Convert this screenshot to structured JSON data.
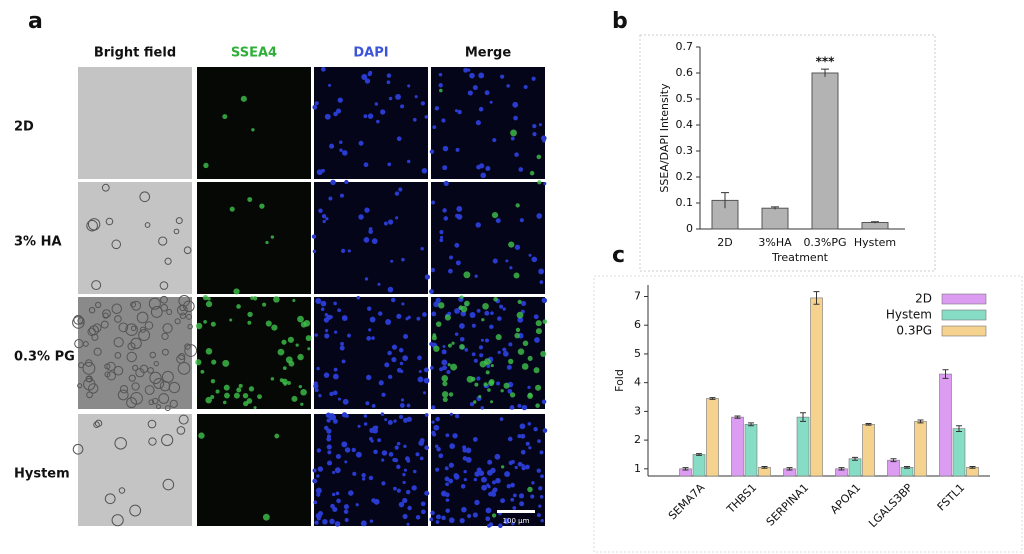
{
  "panel_labels": [
    "a",
    "b",
    "c"
  ],
  "panel_a": {
    "columns": [
      "Bright field",
      "SSEA4",
      "DAPI",
      "Merge"
    ],
    "rows": [
      "2D",
      "3% HA",
      "0.3% PG",
      "Hystem"
    ],
    "scale_bar": "100 μm"
  },
  "chart_data": [
    {
      "type": "bar",
      "categories": [
        "2D",
        "3%HA",
        "0.3%PG",
        "Hystem"
      ],
      "values": [
        0.11,
        0.08,
        0.6,
        0.025
      ],
      "errors": [
        0.03,
        0.005,
        0.015,
        0.003
      ],
      "color": "#b3b3b3",
      "ylim": [
        0,
        0.7
      ],
      "yticks": [
        0,
        0.1,
        0.2,
        0.3,
        0.4,
        0.5,
        0.6,
        0.7
      ],
      "ylabel": "SSEA/DAPI Intensity",
      "xlabel": "Treatment",
      "annotations": [
        {
          "text": "***",
          "category": 2
        }
      ]
    },
    {
      "type": "grouped-bar",
      "categories": [
        "SEMA7A",
        "THBS1",
        "SERPINA1",
        "APOA1",
        "LGALS3BP",
        "FSTL1"
      ],
      "series": [
        {
          "name": "2D",
          "color": "#dc9cf2",
          "values": [
            1.0,
            2.8,
            1.0,
            1.0,
            1.3,
            4.3
          ],
          "errors": [
            0.04,
            0.04,
            0.04,
            0.04,
            0.05,
            0.15
          ]
        },
        {
          "name": "Hystem",
          "color": "#86dcc4",
          "values": [
            1.5,
            2.55,
            2.8,
            1.35,
            1.05,
            2.4
          ],
          "errors": [
            0.03,
            0.05,
            0.15,
            0.05,
            0.03,
            0.1
          ]
        },
        {
          "name": "0.3PG",
          "color": "#f5d28e",
          "values": [
            3.45,
            1.05,
            6.95,
            2.55,
            2.65,
            1.05
          ],
          "errors": [
            0.03,
            0.03,
            0.22,
            0.03,
            0.05,
            0.03
          ]
        }
      ],
      "ylim": [
        0.75,
        7.4
      ],
      "yticks": [
        1,
        2,
        3,
        4,
        5,
        6,
        7
      ],
      "ylabel": "Fold",
      "legend": "upper right"
    }
  ]
}
